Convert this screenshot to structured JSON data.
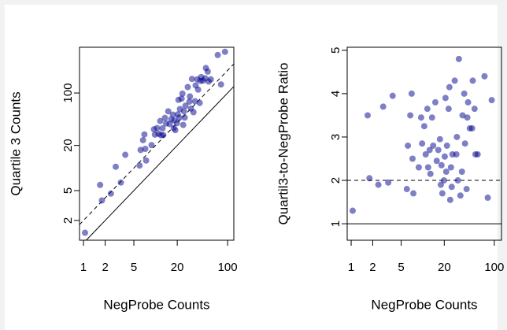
{
  "chart_data": [
    {
      "type": "scatter",
      "xlabel": "NegProbe Counts",
      "ylabel": "Quartile 3 Counts",
      "color": "#00008b",
      "xlog": true,
      "ylog": true,
      "xlim": [
        0.88,
        122
      ],
      "ylim": [
        1.09,
        407
      ],
      "xticks": [
        1,
        2,
        5,
        20,
        100
      ],
      "yticks": [
        2,
        5,
        20,
        100
      ],
      "reference_lines": [
        {
          "slope": 1,
          "style": "solid"
        },
        {
          "slope": 2,
          "style": "dashed"
        }
      ],
      "x": [
        1.05,
        1.7,
        1.8,
        2.4,
        2.8,
        3.3,
        3.8,
        6.0,
        6.2,
        6.7,
        7.0,
        7.4,
        7.2,
        8.8,
        9.5,
        9.8,
        10.5,
        11,
        11.6,
        11.9,
        12.5,
        12.8,
        13.5,
        14,
        15,
        15.7,
        16.5,
        17.4,
        17.9,
        18.3,
        18.8,
        19.8,
        20.3,
        20.8,
        21.3,
        21.8,
        23,
        23.6,
        24.2,
        24.8,
        25.4,
        26,
        28,
        29.5,
        30,
        31,
        32,
        33.6,
        35.3,
        36,
        38,
        39,
        41,
        42,
        43,
        45.5,
        49,
        50,
        53,
        54.5,
        58.5,
        73,
        81,
        92
      ],
      "y": [
        1.37,
        5.95,
        3.69,
        4.56,
        10.4,
        6.4,
        15,
        10.8,
        17.4,
        23.5,
        28,
        12.6,
        18,
        20.2,
        32.8,
        27.9,
        34.1,
        28.6,
        42.3,
        27.4,
        33.8,
        27.5,
        46.6,
        39.2,
        57,
        38.5,
        44.6,
        51.3,
        34,
        43,
        32,
        39.6,
        51.8,
        81,
        46.9,
        61,
        84,
        98,
        37.5,
        57,
        47,
        67.6,
        120,
        76.7,
        90,
        62,
        154,
        55.4,
        77.7,
        126,
        152,
        111,
        73.8,
        145,
        163,
        146,
        157,
        215,
        193,
        142,
        152,
        321,
        130,
        354
      ]
    },
    {
      "type": "scatter",
      "xlabel": "NegProbe Counts",
      "ylabel": "Quartil3-to-NegProbe Ratio",
      "color": "#00008b",
      "xlog": true,
      "ylog": false,
      "xlim": [
        0.88,
        126
      ],
      "ylim": [
        0.62,
        5.07
      ],
      "xticks": [
        1,
        2,
        5,
        20,
        100
      ],
      "yticks": [
        1,
        2,
        3,
        4,
        5
      ],
      "hlines": [
        {
          "y": 1,
          "style": "solid"
        },
        {
          "y": 2,
          "style": "dashed"
        }
      ],
      "x": [
        1.05,
        1.7,
        1.8,
        2.4,
        2.8,
        3.3,
        3.8,
        6.0,
        6.2,
        6.7,
        7.0,
        7.4,
        7.2,
        8.8,
        9.5,
        9.8,
        10.5,
        11,
        11.6,
        11.9,
        12.5,
        12.8,
        13.5,
        14,
        15,
        15.7,
        16.5,
        17.4,
        17.9,
        18.3,
        18.8,
        19.8,
        20.3,
        20.8,
        21.3,
        21.8,
        23,
        23.6,
        24.2,
        24.8,
        25.4,
        26,
        28,
        29.5,
        30,
        31,
        32,
        33.6,
        35.3,
        36,
        38,
        39,
        41,
        42,
        43,
        45.5,
        49,
        50,
        53,
        54.5,
        58.5,
        73,
        81,
        92
      ],
      "y": [
        1.3,
        3.5,
        2.05,
        1.9,
        3.7,
        1.95,
        3.95,
        1.8,
        2.8,
        3.5,
        4.0,
        1.7,
        2.5,
        2.3,
        3.45,
        2.85,
        3.25,
        2.6,
        3.65,
        2.3,
        2.7,
        2.15,
        3.45,
        2.8,
        3.8,
        2.45,
        2.7,
        2.95,
        1.9,
        2.35,
        1.7,
        2.0,
        2.55,
        3.9,
        2.2,
        2.8,
        3.65,
        4.15,
        1.55,
        2.3,
        1.85,
        2.6,
        4.3,
        2.6,
        3.0,
        2.0,
        4.8,
        1.65,
        2.2,
        3.5,
        4.0,
        2.85,
        1.8,
        3.45,
        3.8,
        3.2,
        3.2,
        4.3,
        3.65,
        2.6,
        2.6,
        4.4,
        1.6,
        3.85
      ]
    }
  ]
}
